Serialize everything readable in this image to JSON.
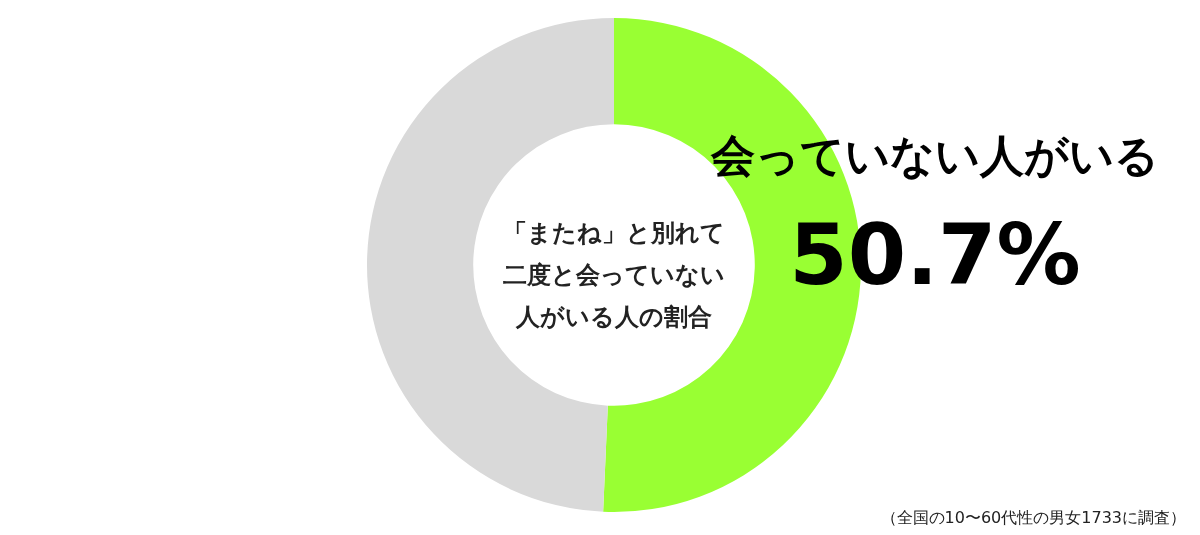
{
  "chart_data": {
    "type": "donut",
    "title": "「またね」と別れて二度と会っていない人がいる人の割合",
    "categories": [
      "会っていない人がいる",
      null
    ],
    "values": [
      50.7,
      49.3
    ],
    "colors": [
      "#99ff33",
      "#d9d9d9"
    ],
    "value_labels": [
      "50.7%",
      null
    ],
    "annotations": [
      "（全国の10〜60代性の男女1733に調査）"
    ]
  }
}
